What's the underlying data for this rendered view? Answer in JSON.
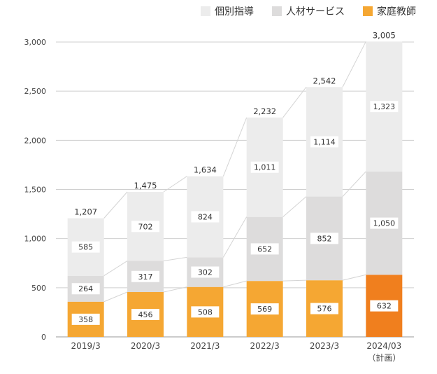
{
  "chart_data": {
    "type": "bar",
    "stacked": true,
    "categories": [
      "2019/3",
      "2020/3",
      "2021/3",
      "2022/3",
      "2023/3",
      "2024/03"
    ],
    "category_sublabels": [
      "",
      "",
      "",
      "",
      "",
      "（計画）"
    ],
    "series": [
      {
        "name": "家庭教師",
        "values": [
          358,
          456,
          508,
          569,
          576,
          632
        ],
        "color": "#f5a733",
        "highlight_last_color": "#f07f1e"
      },
      {
        "name": "人材サービス",
        "values": [
          264,
          317,
          302,
          652,
          852,
          1050
        ],
        "color": "#dddcdc"
      },
      {
        "name": "個別指導",
        "values": [
          585,
          702,
          824,
          1011,
          1114,
          1323
        ],
        "color": "#ececec"
      }
    ],
    "totals": [
      1207,
      1475,
      1634,
      2232,
      2542,
      3005
    ],
    "ylim": [
      0,
      3000
    ],
    "yticks": [
      0,
      500,
      1000,
      1500,
      2000,
      2500,
      3000
    ],
    "grid": true,
    "legend_position": "top-right",
    "legend_order": [
      "個別指導",
      "人材サービス",
      "家庭教師"
    ]
  }
}
